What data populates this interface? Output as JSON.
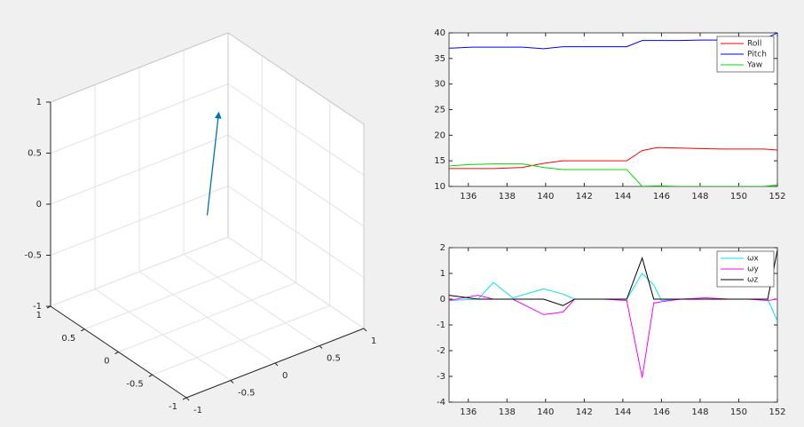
{
  "chart_data": [
    {
      "type": "quiver3",
      "xlim": [
        -1,
        1
      ],
      "ylim": [
        -1,
        1
      ],
      "zlim": [
        -1,
        1
      ],
      "xticks": [
        -1,
        -0.5,
        0,
        0.5,
        1
      ],
      "yticks": [
        -1,
        -0.5,
        0,
        0.5,
        1
      ],
      "zticks": [
        -1,
        -0.5,
        0,
        0.5,
        1
      ],
      "grid": true,
      "vectors": [
        {
          "x": 0,
          "y": 0,
          "z": 0,
          "u": 0.13,
          "v": 0,
          "w": 0.96,
          "color": "#0072bd"
        }
      ]
    },
    {
      "type": "line",
      "x": [
        135,
        136.2,
        137.3,
        138.8,
        139.9,
        140.9,
        142.1,
        143.0,
        144.2,
        145.0,
        145.8,
        146.9,
        148.0,
        149.1,
        150.2,
        151.3,
        152.0
      ],
      "series": [
        {
          "name": "Roll",
          "color": "#ff0000",
          "values": [
            13.5,
            13.5,
            13.5,
            13.7,
            14.5,
            15,
            15,
            15,
            15,
            17,
            17.6,
            17.5,
            17.4,
            17.3,
            17.3,
            17.3,
            17.1
          ]
        },
        {
          "name": "Pitch",
          "color": "#0000ff",
          "values": [
            37,
            37.2,
            37.2,
            37.2,
            36.9,
            37.3,
            37.3,
            37.3,
            37.3,
            38.5,
            38.5,
            38.5,
            38.6,
            38.6,
            38.6,
            38.7,
            40
          ]
        },
        {
          "name": "Yaw",
          "color": "#00dd00",
          "values": [
            14,
            14.3,
            14.4,
            14.4,
            13.7,
            13.3,
            13.3,
            13.3,
            13.3,
            10,
            10.1,
            10,
            10,
            10,
            10,
            10,
            10.3
          ]
        }
      ],
      "xlim": [
        135,
        152
      ],
      "ylim": [
        10,
        40
      ],
      "xticks": [
        136,
        138,
        140,
        142,
        144,
        146,
        148,
        150,
        152
      ],
      "yticks": [
        10,
        15,
        20,
        25,
        30,
        35,
        40
      ],
      "legend": "northeast"
    },
    {
      "type": "line",
      "x": [
        135,
        136.5,
        137.3,
        138.3,
        139.9,
        140.9,
        141.5,
        143,
        144.2,
        145,
        145.6,
        146,
        147,
        148.3,
        149.5,
        150.5,
        151.5,
        152
      ],
      "series": [
        {
          "name": "ωx",
          "color": "#00e5ee",
          "values": [
            -0.05,
            0,
            0.65,
            0.05,
            0.4,
            0.2,
            0,
            0,
            0,
            1,
            0.55,
            -0.05,
            0,
            0,
            0,
            0,
            0,
            -0.85
          ]
        },
        {
          "name": "ωy",
          "color": "#ff00ff",
          "values": [
            -0.05,
            0.15,
            0,
            0,
            -0.6,
            -0.5,
            0,
            0,
            -0.05,
            -3.05,
            -0.15,
            -0.1,
            0,
            0.05,
            0,
            0,
            -0.05,
            0
          ]
        },
        {
          "name": "ωz",
          "color": "#000000",
          "values": [
            0.15,
            0,
            0,
            0,
            0,
            -0.25,
            0,
            0,
            0,
            1.6,
            0,
            0,
            0,
            0,
            0,
            0,
            0,
            1.9
          ]
        }
      ],
      "xlim": [
        135,
        152
      ],
      "ylim": [
        -4,
        2
      ],
      "xticks": [
        136,
        138,
        140,
        142,
        144,
        146,
        148,
        150,
        152
      ],
      "yticks": [
        -4,
        -3,
        -2,
        -1,
        0,
        1,
        2
      ],
      "legend": "northeast"
    }
  ]
}
